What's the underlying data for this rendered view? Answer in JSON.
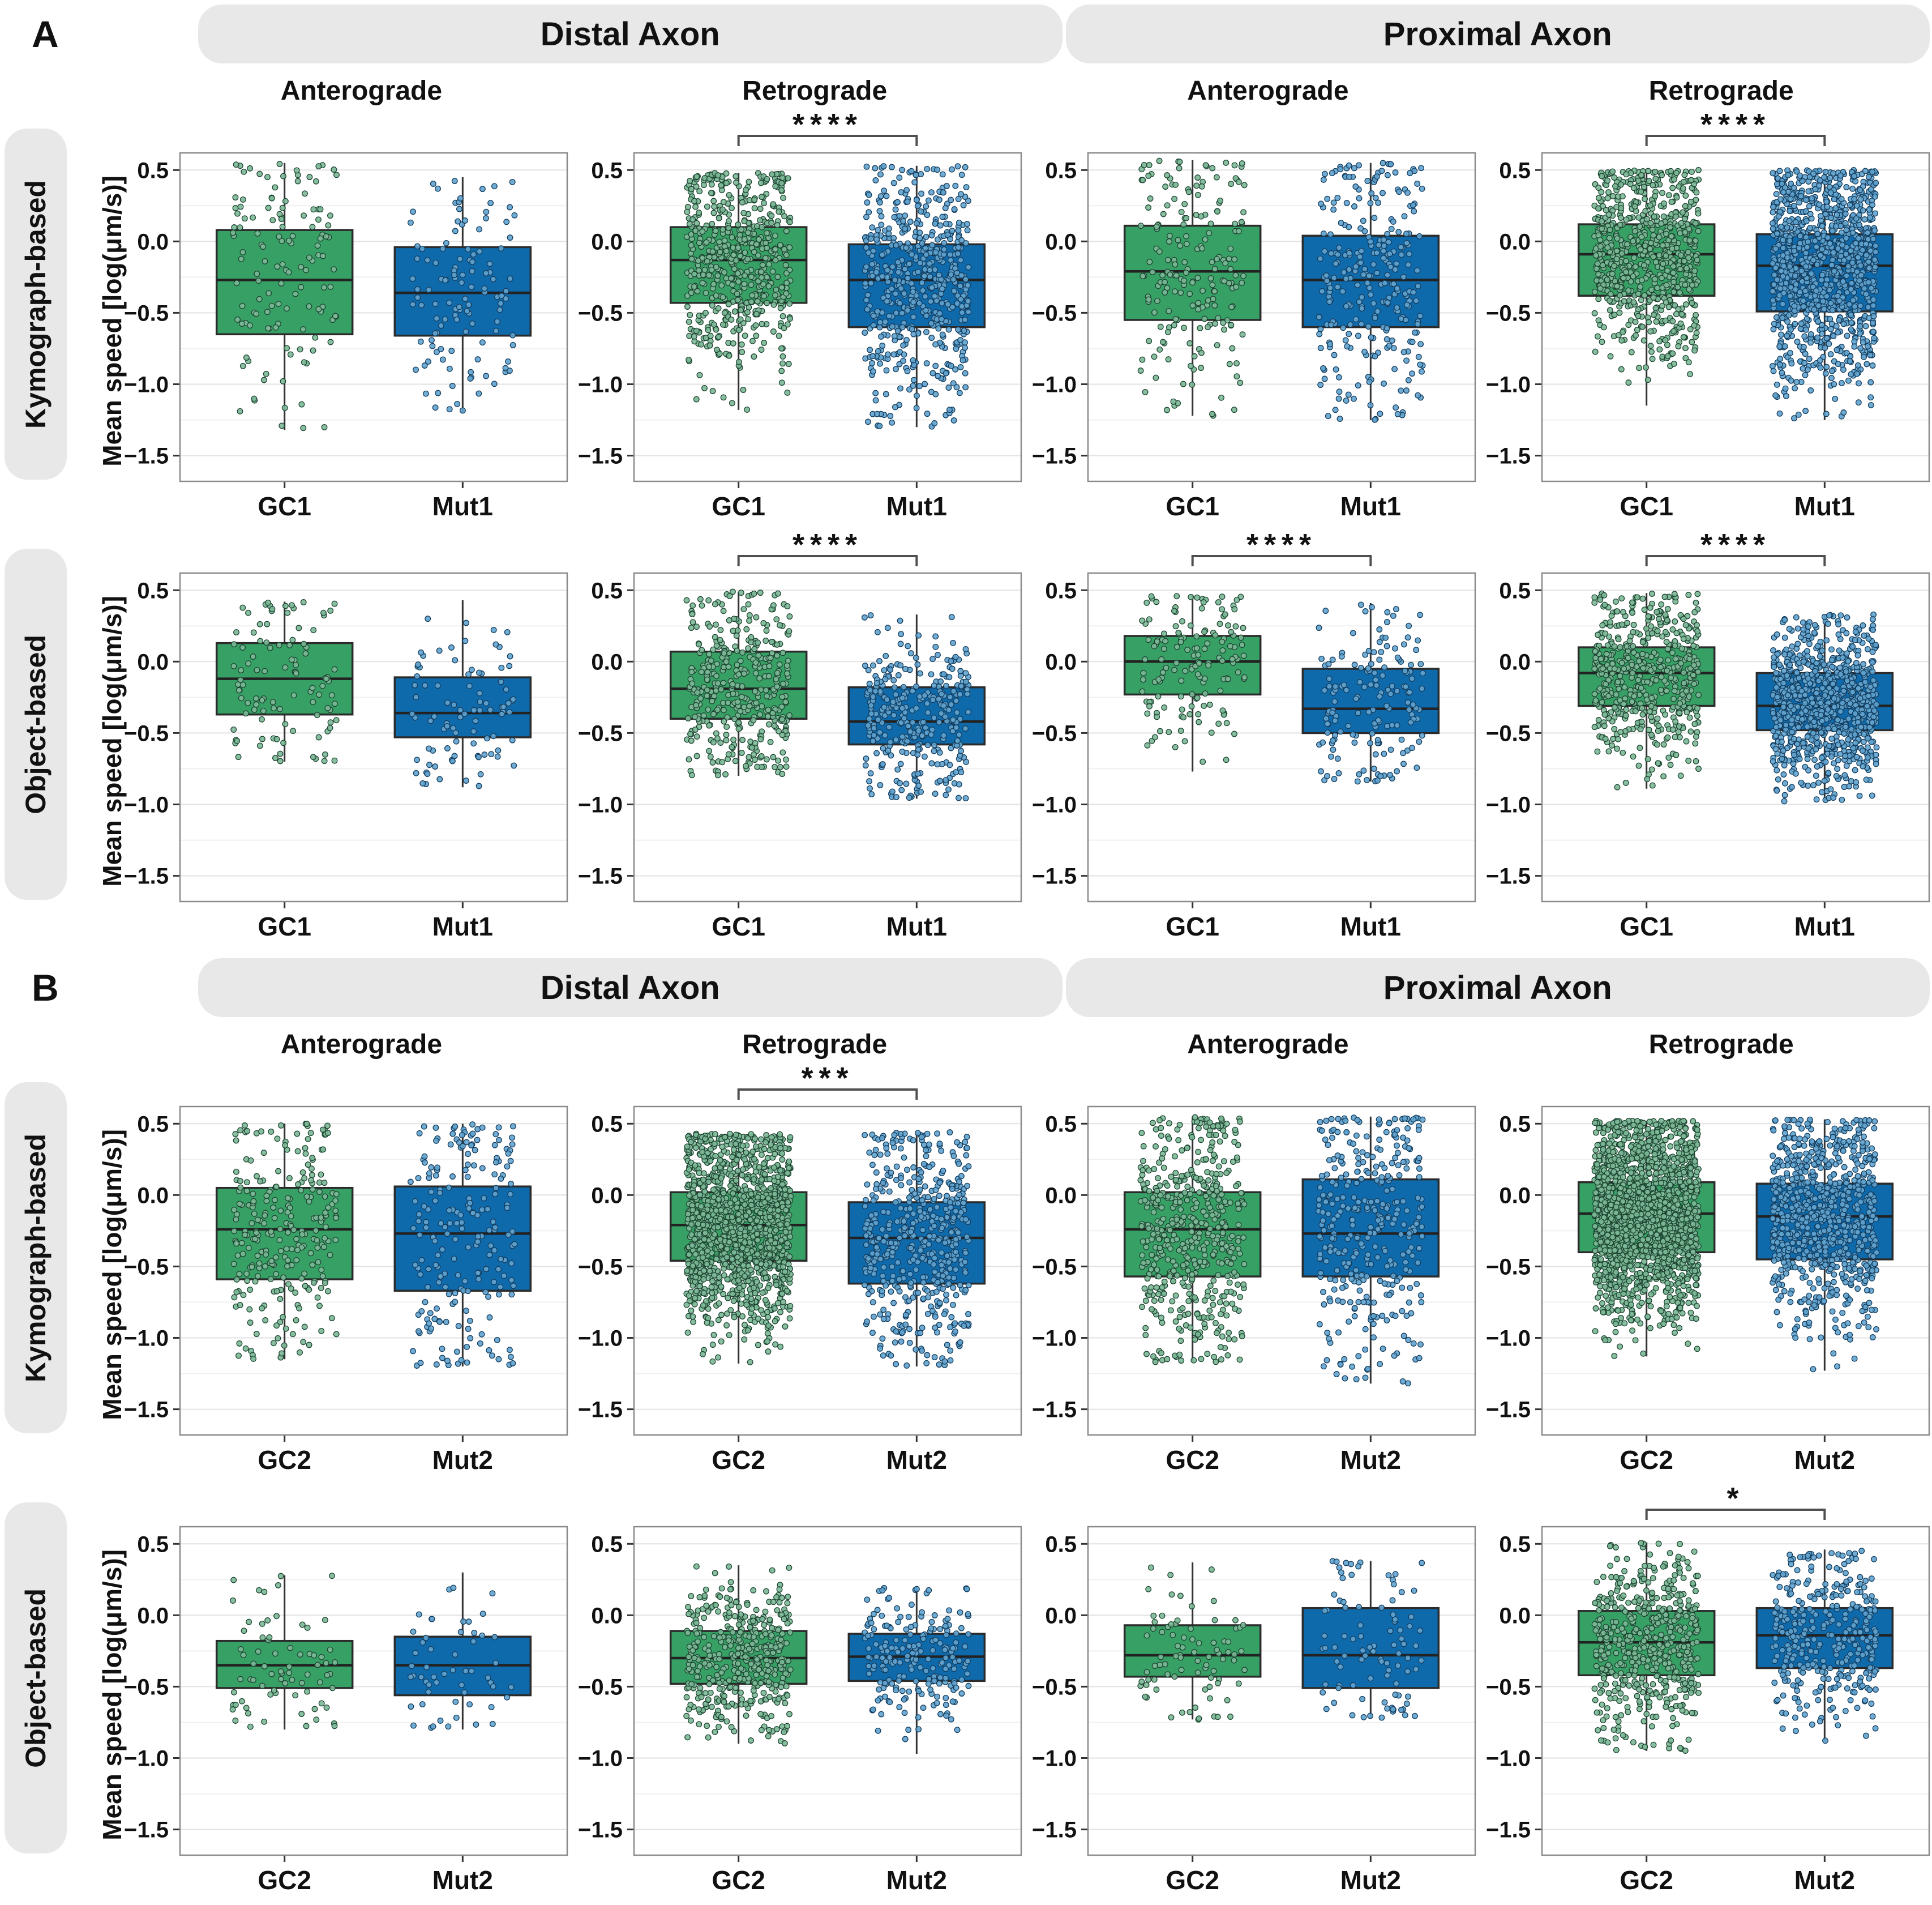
{
  "chart_data": {
    "type": "boxplot-jitter-grid",
    "ylabel": "Mean speed [log(μm/s)]",
    "ylim": [
      0.62,
      -1.68
    ],
    "yticks": [
      0.5,
      0.0,
      -0.5,
      -1.0,
      -1.5
    ],
    "grid_step": 0.25,
    "legend_position": "none",
    "colors": {
      "gc_fill": "#36a065",
      "mut_fill": "#0f6aab",
      "gc_point": "#7cb897",
      "mut_point": "#61a3ce",
      "gc_point_stroke": "#1d4531",
      "mut_point_stroke": "#133c5d",
      "box_stroke": "#2b2b2b",
      "whisker": "#333333",
      "bracket": "#4f4f4f",
      "header_bg": "#e8e8e8"
    },
    "panels": [
      {
        "label": "A",
        "regions": [
          "Distal Axon",
          "Proximal Axon"
        ],
        "col_titles": [
          "Anterograde",
          "Retrograde",
          "Anterograde",
          "Retrograde"
        ],
        "rows": [
          {
            "method": "Kymograph-based",
            "plots": [
              {
                "sig": "",
                "series": [
                  {
                    "name": "GC1",
                    "color": "gc",
                    "n": 130,
                    "lo": -1.32,
                    "q1": -0.65,
                    "med": -0.27,
                    "q3": 0.08,
                    "hi": 0.55
                  },
                  {
                    "name": "Mut1",
                    "color": "mut",
                    "n": 120,
                    "lo": -1.2,
                    "q1": -0.66,
                    "med": -0.36,
                    "q3": -0.04,
                    "hi": 0.45
                  }
                ]
              },
              {
                "sig": "****",
                "series": [
                  {
                    "name": "GC1",
                    "color": "gc",
                    "n": 550,
                    "lo": -1.18,
                    "q1": -0.43,
                    "med": -0.13,
                    "q3": 0.1,
                    "hi": 0.48
                  },
                  {
                    "name": "Mut1",
                    "color": "mut",
                    "n": 560,
                    "lo": -1.3,
                    "q1": -0.6,
                    "med": -0.27,
                    "q3": -0.02,
                    "hi": 0.53
                  }
                ]
              },
              {
                "sig": "",
                "series": [
                  {
                    "name": "GC1",
                    "color": "gc",
                    "n": 200,
                    "lo": -1.22,
                    "q1": -0.55,
                    "med": -0.21,
                    "q3": 0.11,
                    "hi": 0.57
                  },
                  {
                    "name": "Mut1",
                    "color": "mut",
                    "n": 280,
                    "lo": -1.25,
                    "q1": -0.6,
                    "med": -0.27,
                    "q3": 0.04,
                    "hi": 0.55
                  }
                ]
              },
              {
                "sig": "****",
                "series": [
                  {
                    "name": "GC1",
                    "color": "gc",
                    "n": 700,
                    "lo": -1.15,
                    "q1": -0.38,
                    "med": -0.09,
                    "q3": 0.12,
                    "hi": 0.5
                  },
                  {
                    "name": "Mut1",
                    "color": "mut",
                    "n": 1100,
                    "lo": -1.25,
                    "q1": -0.49,
                    "med": -0.17,
                    "q3": 0.05,
                    "hi": 0.5
                  }
                ]
              }
            ]
          },
          {
            "method": "Object-based",
            "plots": [
              {
                "sig": "",
                "series": [
                  {
                    "name": "GC1",
                    "color": "gc",
                    "n": 105,
                    "lo": -0.7,
                    "q1": -0.37,
                    "med": -0.12,
                    "q3": 0.13,
                    "hi": 0.42
                  },
                  {
                    "name": "Mut1",
                    "color": "mut",
                    "n": 90,
                    "lo": -0.88,
                    "q1": -0.53,
                    "med": -0.36,
                    "q3": -0.11,
                    "hi": 0.43
                  }
                ]
              },
              {
                "sig": "****",
                "series": [
                  {
                    "name": "GC1",
                    "color": "gc",
                    "n": 380,
                    "lo": -0.8,
                    "q1": -0.4,
                    "med": -0.19,
                    "q3": 0.07,
                    "hi": 0.49
                  },
                  {
                    "name": "Mut1",
                    "color": "mut",
                    "n": 320,
                    "lo": -0.96,
                    "q1": -0.58,
                    "med": -0.42,
                    "q3": -0.18,
                    "hi": 0.33
                  }
                ]
              },
              {
                "sig": "****",
                "series": [
                  {
                    "name": "GC1",
                    "color": "gc",
                    "n": 150,
                    "lo": -0.77,
                    "q1": -0.23,
                    "med": 0.0,
                    "q3": 0.18,
                    "hi": 0.47
                  },
                  {
                    "name": "Mut1",
                    "color": "mut",
                    "n": 160,
                    "lo": -0.84,
                    "q1": -0.5,
                    "med": -0.33,
                    "q3": -0.05,
                    "hi": 0.41
                  }
                ]
              },
              {
                "sig": "****",
                "series": [
                  {
                    "name": "GC1",
                    "color": "gc",
                    "n": 520,
                    "lo": -0.89,
                    "q1": -0.31,
                    "med": -0.08,
                    "q3": 0.1,
                    "hi": 0.48
                  },
                  {
                    "name": "Mut1",
                    "color": "mut",
                    "n": 850,
                    "lo": -0.98,
                    "q1": -0.48,
                    "med": -0.31,
                    "q3": -0.08,
                    "hi": 0.33
                  }
                ]
              }
            ]
          }
        ]
      },
      {
        "label": "B",
        "regions": [
          "Distal Axon",
          "Proximal Axon"
        ],
        "col_titles": [
          "Anterograde",
          "Retrograde",
          "Anterograde",
          "Retrograde"
        ],
        "rows": [
          {
            "method": "Kymograph-based",
            "plots": [
              {
                "sig": "",
                "series": [
                  {
                    "name": "GC2",
                    "color": "gc",
                    "n": 260,
                    "lo": -1.15,
                    "q1": -0.59,
                    "med": -0.24,
                    "q3": 0.05,
                    "hi": 0.5
                  },
                  {
                    "name": "Mut2",
                    "color": "mut",
                    "n": 210,
                    "lo": -1.2,
                    "q1": -0.67,
                    "med": -0.27,
                    "q3": 0.06,
                    "hi": 0.5
                  }
                ]
              },
              {
                "sig": "***",
                "series": [
                  {
                    "name": "GC2",
                    "color": "gc",
                    "n": 1400,
                    "lo": -1.18,
                    "q1": -0.46,
                    "med": -0.21,
                    "q3": 0.02,
                    "hi": 0.43
                  },
                  {
                    "name": "Mut2",
                    "color": "mut",
                    "n": 520,
                    "lo": -1.2,
                    "q1": -0.62,
                    "med": -0.3,
                    "q3": -0.05,
                    "hi": 0.44
                  }
                ]
              },
              {
                "sig": "",
                "series": [
                  {
                    "name": "GC2",
                    "color": "gc",
                    "n": 520,
                    "lo": -1.17,
                    "q1": -0.57,
                    "med": -0.24,
                    "q3": 0.02,
                    "hi": 0.55
                  },
                  {
                    "name": "Mut2",
                    "color": "mut",
                    "n": 360,
                    "lo": -1.32,
                    "q1": -0.57,
                    "med": -0.27,
                    "q3": 0.11,
                    "hi": 0.55
                  }
                ]
              },
              {
                "sig": "",
                "series": [
                  {
                    "name": "GC2",
                    "color": "gc",
                    "n": 1800,
                    "lo": -1.13,
                    "q1": -0.4,
                    "med": -0.13,
                    "q3": 0.09,
                    "hi": 0.52
                  },
                  {
                    "name": "Mut2",
                    "color": "mut",
                    "n": 800,
                    "lo": -1.23,
                    "q1": -0.45,
                    "med": -0.15,
                    "q3": 0.08,
                    "hi": 0.53
                  }
                ]
              }
            ]
          },
          {
            "method": "Object-based",
            "plots": [
              {
                "sig": "",
                "series": [
                  {
                    "name": "GC2",
                    "color": "gc",
                    "n": 75,
                    "lo": -0.8,
                    "q1": -0.51,
                    "med": -0.35,
                    "q3": -0.18,
                    "hi": 0.28
                  },
                  {
                    "name": "Mut2",
                    "color": "mut",
                    "n": 55,
                    "lo": -0.8,
                    "q1": -0.56,
                    "med": -0.35,
                    "q3": -0.15,
                    "hi": 0.3
                  }
                ]
              },
              {
                "sig": "",
                "series": [
                  {
                    "name": "GC2",
                    "color": "gc",
                    "n": 420,
                    "lo": -0.9,
                    "q1": -0.48,
                    "med": -0.3,
                    "q3": -0.11,
                    "hi": 0.35
                  },
                  {
                    "name": "Mut2",
                    "color": "mut",
                    "n": 210,
                    "lo": -0.97,
                    "q1": -0.46,
                    "med": -0.29,
                    "q3": -0.13,
                    "hi": 0.2
                  }
                ]
              },
              {
                "sig": "",
                "series": [
                  {
                    "name": "GC2",
                    "color": "gc",
                    "n": 85,
                    "lo": -0.73,
                    "q1": -0.43,
                    "med": -0.28,
                    "q3": -0.07,
                    "hi": 0.37
                  },
                  {
                    "name": "Mut2",
                    "color": "mut",
                    "n": 95,
                    "lo": -0.72,
                    "q1": -0.51,
                    "med": -0.28,
                    "q3": 0.05,
                    "hi": 0.38
                  }
                ]
              },
              {
                "sig": "*",
                "series": [
                  {
                    "name": "GC2",
                    "color": "gc",
                    "n": 520,
                    "lo": -0.95,
                    "q1": -0.42,
                    "med": -0.19,
                    "q3": 0.03,
                    "hi": 0.51
                  },
                  {
                    "name": "Mut2",
                    "color": "mut",
                    "n": 350,
                    "lo": -0.88,
                    "q1": -0.37,
                    "med": -0.14,
                    "q3": 0.05,
                    "hi": 0.46
                  }
                ]
              }
            ]
          }
        ]
      }
    ]
  }
}
